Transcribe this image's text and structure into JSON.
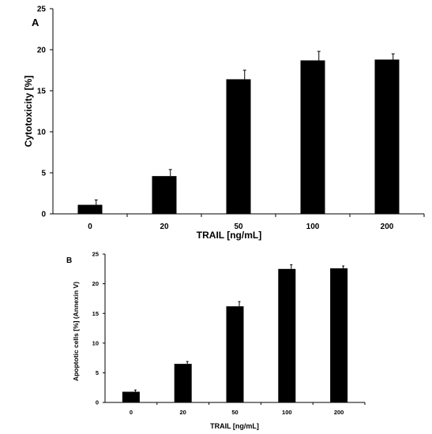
{
  "chart_data": [
    {
      "panel": "A",
      "type": "bar",
      "categories": [
        "0",
        "20",
        "50",
        "100",
        "200"
      ],
      "values": [
        1.1,
        4.6,
        16.4,
        18.7,
        18.8
      ],
      "errors": [
        0.6,
        0.8,
        1.1,
        1.1,
        0.7
      ],
      "xlabel": "TRAIL [ng/mL]",
      "ylabel": "Cytotoxicity [%]",
      "ylim": [
        0,
        25
      ],
      "yticks": [
        0,
        5,
        10,
        15,
        20,
        25
      ],
      "grid": false,
      "bar_color": "#000000"
    },
    {
      "panel": "B",
      "type": "bar",
      "categories": [
        "0",
        "20",
        "50",
        "100",
        "200"
      ],
      "values": [
        1.8,
        6.5,
        16.2,
        22.5,
        22.6
      ],
      "errors": [
        0.3,
        0.4,
        0.8,
        0.7,
        0.4
      ],
      "xlabel": "TRAIL [ng/mL]",
      "ylabel": "Apoptotic cells [%] (Annexin V)",
      "ylim": [
        0,
        25
      ],
      "yticks": [
        0,
        5,
        10,
        15,
        20,
        25
      ],
      "grid": false,
      "bar_color": "#000000"
    }
  ]
}
